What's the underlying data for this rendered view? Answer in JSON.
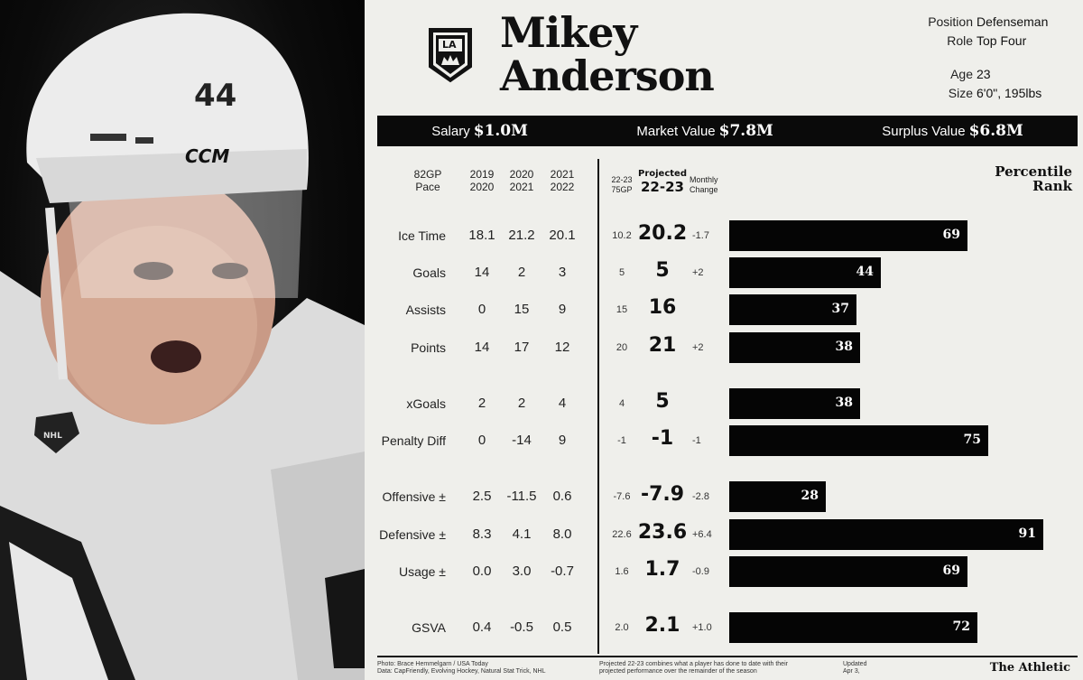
{
  "player": {
    "first_name": "Mikey",
    "last_name": "Anderson",
    "number": "44",
    "team_logo_text": "LA",
    "position_label": "Position",
    "position": "Defenseman",
    "role_label": "Role",
    "role": "Top Four",
    "age_label": "Age",
    "age": "23",
    "size_label": "Size",
    "size": "6'0\", 195lbs"
  },
  "banner": {
    "salary_label": "Salary",
    "salary": "$1.0M",
    "market_label": "Market Value",
    "market": "$7.8M",
    "surplus_label": "Surplus Value",
    "surplus": "$6.8M"
  },
  "headers": {
    "pace_line1": "82GP",
    "pace_line2": "Pace",
    "y1_line1": "2019",
    "y1_line2": "2020",
    "y2_line1": "2020",
    "y2_line2": "2021",
    "y3_line1": "2021",
    "y3_line2": "2022",
    "gp75_line1": "22-23",
    "gp75_line2": "75GP",
    "proj_line1": "Projected",
    "proj_line2": "22-23",
    "chg_line1": "Monthly",
    "chg_line2": "Change",
    "pct_line1": "Percentile",
    "pct_line2": "Rank"
  },
  "chart_data": {
    "type": "bar",
    "categories": [
      "Ice Time",
      "Goals",
      "Assists",
      "Points",
      "xGoals",
      "Penalty Diff",
      "Offensive ±",
      "Defensive ±",
      "Usage ±",
      "GSVA"
    ],
    "values": [
      69,
      44,
      37,
      38,
      38,
      75,
      28,
      91,
      69,
      72
    ],
    "xlim": [
      0,
      100
    ]
  },
  "rows": [
    {
      "label": "Ice Time",
      "y1": "18.1",
      "y2": "21.2",
      "y3": "20.1",
      "gp75": "10.2",
      "proj": "20.2",
      "chg": "-1.7",
      "pct": 69
    },
    {
      "label": "Goals",
      "y1": "14",
      "y2": "2",
      "y3": "3",
      "gp75": "5",
      "proj": "5",
      "chg": "+2",
      "pct": 44
    },
    {
      "label": "Assists",
      "y1": "0",
      "y2": "15",
      "y3": "9",
      "gp75": "15",
      "proj": "16",
      "chg": "",
      "pct": 37
    },
    {
      "label": "Points",
      "y1": "14",
      "y2": "17",
      "y3": "12",
      "gp75": "20",
      "proj": "21",
      "chg": "+2",
      "pct": 38
    },
    {
      "label": "xGoals",
      "y1": "2",
      "y2": "2",
      "y3": "4",
      "gp75": "4",
      "proj": "5",
      "chg": "",
      "pct": 38
    },
    {
      "label": "Penalty Diff",
      "y1": "0",
      "y2": "-14",
      "y3": "9",
      "gp75": "-1",
      "proj": "-1",
      "chg": "-1",
      "pct": 75
    },
    {
      "label": "Offensive ±",
      "y1": "2.5",
      "y2": "-11.5",
      "y3": "0.6",
      "gp75": "-7.6",
      "proj": "-7.9",
      "chg": "-2.8",
      "pct": 28
    },
    {
      "label": "Defensive ±",
      "y1": "8.3",
      "y2": "4.1",
      "y3": "8.0",
      "gp75": "22.6",
      "proj": "23.6",
      "chg": "+6.4",
      "pct": 91
    },
    {
      "label": "Usage ±",
      "y1": "0.0",
      "y2": "3.0",
      "y3": "-0.7",
      "gp75": "1.6",
      "proj": "1.7",
      "chg": "-0.9",
      "pct": 69
    },
    {
      "label": "GSVA",
      "y1": "0.4",
      "y2": "-0.5",
      "y3": "0.5",
      "gp75": "2.0",
      "proj": "2.1",
      "chg": "+1.0",
      "pct": 72
    }
  ],
  "footer": {
    "credit1": "Photo: Brace Hemmelgarn / USA Today",
    "credit2": "Data: CapFriendly, Evolving Hockey, Natural Stat Trick, NHL",
    "note1": "Projected 22-23 combines what a player has done to date with their",
    "note2": "projected performance over the remainder of the season",
    "updated1": "Updated",
    "updated2": "Apr 3,",
    "brand": "The Athletic"
  },
  "colors": {
    "background": "#efefeb",
    "bar": "#050505",
    "banner": "#0a0a0a",
    "change_text": "#333333"
  }
}
